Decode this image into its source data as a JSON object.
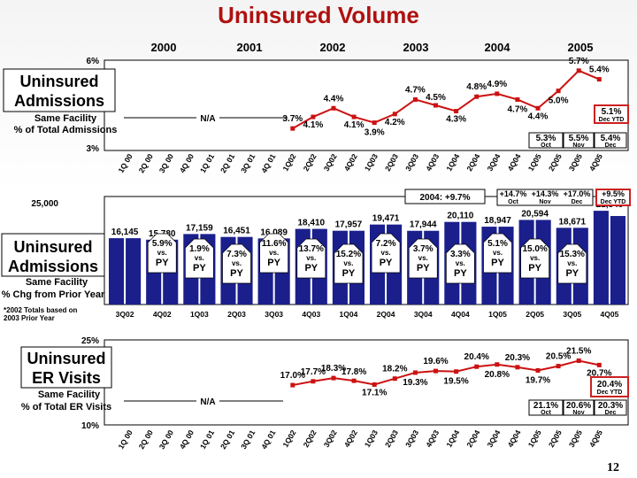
{
  "title": "Uninsured Volume",
  "page_number": "12",
  "colors": {
    "title": "#b01010",
    "line": "#cc1111",
    "bar": "#1a1f8c",
    "box_red": "#cc2020",
    "callout_fill": "#ffffff"
  },
  "years": [
    "2000",
    "2001",
    "2002",
    "2003",
    "2004",
    "2005"
  ],
  "top_panel": {
    "heading_line1": "Uninsured",
    "heading_line2": "Admissions",
    "sub_line1": "Same Facility",
    "sub_line2": "% of Total Admissions",
    "y_max_label": "6%",
    "y_min_label": "3%",
    "na_label": "N/A",
    "red_box": {
      "value": "5.1%",
      "note": "Dec YTD"
    },
    "months": [
      {
        "value": "5.3%",
        "month": "Oct"
      },
      {
        "value": "5.5%",
        "month": "Nov"
      },
      {
        "value": "5.4%",
        "month": "Dec"
      }
    ]
  },
  "middle_panel": {
    "heading_line1": "Uninsured",
    "heading_line2": "Admissions",
    "sub_line1": "Same Facility",
    "sub_line2": "% Chg from Prior Year",
    "y_max_label": "25,000",
    "footnote_line1": "*2002 Totals based on",
    "footnote_line2": "2003 Prior Year",
    "callout": "2004: +9.7%",
    "months": [
      {
        "value": "+14.7%",
        "month": "Oct"
      },
      {
        "value": "+14.3%",
        "month": "Nov"
      },
      {
        "value": "+17.0%",
        "month": "Dec"
      }
    ],
    "red_box": {
      "value": "+9.5%",
      "note": "Dec YTD"
    },
    "vs_label": "vs.",
    "py_label": "PY"
  },
  "bottom_panel": {
    "heading_line1": "Uninsured",
    "heading_line2": "ER Visits",
    "sub_line1": "Same Facility",
    "sub_line2": "% of Total ER Visits",
    "y_max_label": "25%",
    "y_min_label": "10%",
    "na_label": "N/A",
    "red_box": {
      "value": "20.4%",
      "note": "Dec YTD"
    },
    "months": [
      {
        "value": "21.1%",
        "month": "Oct"
      },
      {
        "value": "20.6%",
        "month": "Nov"
      },
      {
        "value": "20.3%",
        "month": "Dec"
      }
    ]
  },
  "chart_data": [
    {
      "type": "line",
      "title": "Uninsured Admissions - Same Facility % of Total Admissions",
      "ylim": [
        3,
        6
      ],
      "y_unit": "%",
      "x": [
        "1Q 00",
        "2Q 00",
        "3Q 00",
        "4Q 00",
        "1Q 01",
        "2Q 01",
        "3Q 01",
        "4Q 01",
        "1Q02",
        "2Q02",
        "3Q02",
        "4Q02",
        "1Q03",
        "2Q03",
        "3Q03",
        "4Q03",
        "1Q04",
        "2Q04",
        "3Q04",
        "4Q04",
        "1Q05",
        "2Q05",
        "3Q05",
        "4Q05"
      ],
      "values": [
        null,
        null,
        null,
        null,
        null,
        null,
        null,
        null,
        3.7,
        4.1,
        4.4,
        4.1,
        3.9,
        4.2,
        4.7,
        4.5,
        4.3,
        4.8,
        4.9,
        4.7,
        4.4,
        5.0,
        5.7,
        5.4
      ],
      "labels": [
        null,
        null,
        null,
        null,
        null,
        null,
        null,
        null,
        "3.7%",
        "4.1%",
        "4.4%",
        "4.1%",
        "3.9%",
        "4.2%",
        "4.7%",
        "4.5%",
        "4.3%",
        "4.8%",
        "4.9%",
        "4.7%",
        "4.4%",
        "5.0%",
        "5.7%",
        "5.4%"
      ]
    },
    {
      "type": "bar",
      "title": "Uninsured Admissions - Same Facility % Chg from Prior Year",
      "ylim": [
        0,
        25000
      ],
      "categories": [
        "3Q02",
        "4Q02",
        "1Q03",
        "2Q03",
        "3Q03",
        "4Q03",
        "1Q04",
        "2Q04",
        "3Q04",
        "4Q04",
        "1Q05",
        "2Q05",
        "3Q05",
        "4Q05"
      ],
      "prior_values": [
        16145,
        15780,
        17159,
        16451,
        16089,
        18410,
        17957,
        19471,
        17944,
        20110,
        18947,
        20594,
        18671,
        22820
      ],
      "current_values": [
        16145,
        15780,
        17159,
        16451,
        16089,
        18410,
        17957,
        19471,
        17944,
        20110,
        18947,
        20594,
        18671,
        21548
      ],
      "pct_change": [
        "5.9%",
        "1.9%",
        "7.3%",
        "11.6%",
        "13.7%",
        "15.2%",
        "7.2%",
        "3.7%",
        "3.3%",
        "5.1%",
        "15.0%",
        "15.3%"
      ]
    },
    {
      "type": "line",
      "title": "Uninsured ER Visits - Same Facility % of Total ER Visits",
      "ylim": [
        10,
        25
      ],
      "y_unit": "%",
      "x": [
        "1Q 00",
        "2Q 00",
        "3Q 00",
        "4Q 00",
        "1Q 01",
        "2Q 01",
        "3Q 01",
        "4Q 01",
        "1Q02",
        "2Q02",
        "3Q02",
        "4Q02",
        "1Q03",
        "2Q03",
        "3Q03",
        "4Q03",
        "1Q04",
        "2Q04",
        "3Q04",
        "4Q04",
        "1Q05",
        "2Q05",
        "3Q05",
        "4Q05"
      ],
      "values": [
        null,
        null,
        null,
        null,
        null,
        null,
        null,
        null,
        17.0,
        17.7,
        18.3,
        17.8,
        17.1,
        18.2,
        19.3,
        19.6,
        19.5,
        20.4,
        20.8,
        20.3,
        19.7,
        20.5,
        21.5,
        20.7
      ],
      "labels": [
        null,
        null,
        null,
        null,
        null,
        null,
        null,
        null,
        "17.0%",
        "17.7%",
        "18.3%",
        "17.8%",
        "17.1%",
        "18.2%",
        "19.3%",
        "19.6%",
        "19.5%",
        "20.4%",
        "20.8%",
        "20.3%",
        "19.7%",
        "20.5%",
        "21.5%",
        "20.7%"
      ]
    }
  ]
}
